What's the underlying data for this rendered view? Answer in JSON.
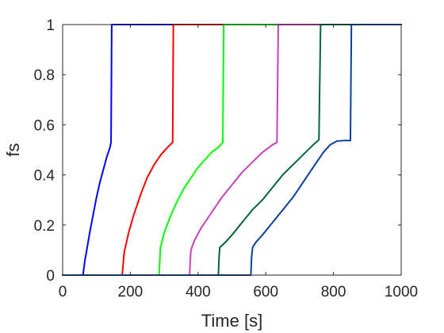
{
  "chart_data": {
    "type": "line",
    "title": "",
    "xlabel": "Time [s]",
    "ylabel": "fs",
    "xlim": [
      0,
      1000
    ],
    "ylim": [
      0,
      1
    ],
    "xticks": [
      0,
      200,
      400,
      600,
      800,
      1000
    ],
    "xtick_labels": [
      "0",
      "200",
      "400",
      "600",
      "800",
      "1000"
    ],
    "yticks": [
      0,
      0.2,
      0.4,
      0.6,
      0.8,
      1
    ],
    "ytick_labels": [
      "0",
      "0.2",
      "0.4",
      "0.6",
      "0.8",
      "1"
    ],
    "grid": false,
    "legend": "none",
    "series": [
      {
        "color": "#0000ff",
        "x": [
          0,
          60,
          61,
          63,
          66,
          70,
          75,
          80,
          90,
          100,
          110,
          120,
          130,
          140,
          143,
          145,
          1000
        ],
        "y": [
          0,
          0,
          0.01,
          0.03,
          0.06,
          0.09,
          0.13,
          0.17,
          0.24,
          0.31,
          0.37,
          0.42,
          0.47,
          0.51,
          0.53,
          1.0,
          1.0
        ]
      },
      {
        "color": "#ff0000",
        "x": [
          0,
          176,
          178,
          181,
          183,
          185,
          195,
          210,
          230,
          250,
          270,
          290,
          310,
          325,
          327,
          1000
        ],
        "y": [
          0,
          0,
          0.03,
          0.08,
          0.1,
          0.11,
          0.17,
          0.24,
          0.32,
          0.39,
          0.44,
          0.48,
          0.51,
          0.53,
          1.0,
          1.0
        ]
      },
      {
        "color": "#00ff00",
        "x": [
          0,
          285,
          287,
          289,
          300,
          320,
          340,
          360,
          380,
          400,
          420,
          440,
          460,
          473,
          476,
          1000
        ],
        "y": [
          0,
          0,
          0.06,
          0.11,
          0.17,
          0.24,
          0.3,
          0.35,
          0.39,
          0.43,
          0.46,
          0.49,
          0.51,
          0.53,
          1.0,
          1.0
        ]
      },
      {
        "color": "#cc3fb8",
        "x": [
          0,
          375,
          377,
          379,
          390,
          410,
          440,
          470,
          500,
          530,
          560,
          590,
          620,
          633,
          637,
          1000
        ],
        "y": [
          0,
          0,
          0.06,
          0.1,
          0.14,
          0.19,
          0.25,
          0.31,
          0.36,
          0.41,
          0.45,
          0.49,
          0.52,
          0.53,
          1.0,
          1.0
        ]
      },
      {
        "color": "#006633",
        "x": [
          0,
          460,
          462,
          464,
          480,
          500,
          530,
          560,
          590,
          620,
          650,
          680,
          710,
          740,
          757,
          762,
          1000
        ],
        "y": [
          0,
          0,
          0.07,
          0.11,
          0.13,
          0.16,
          0.21,
          0.26,
          0.3,
          0.35,
          0.4,
          0.44,
          0.48,
          0.52,
          0.54,
          1.0,
          1.0
        ]
      },
      {
        "color": "#0b3f9e",
        "x": [
          0,
          556,
          558,
          561,
          570,
          590,
          620,
          650,
          680,
          710,
          740,
          770,
          790,
          810,
          830,
          850,
          853,
          1000
        ],
        "y": [
          0,
          0,
          0.07,
          0.11,
          0.13,
          0.16,
          0.21,
          0.26,
          0.31,
          0.37,
          0.43,
          0.49,
          0.52,
          0.535,
          0.537,
          0.537,
          1.0,
          1.0
        ]
      }
    ]
  }
}
